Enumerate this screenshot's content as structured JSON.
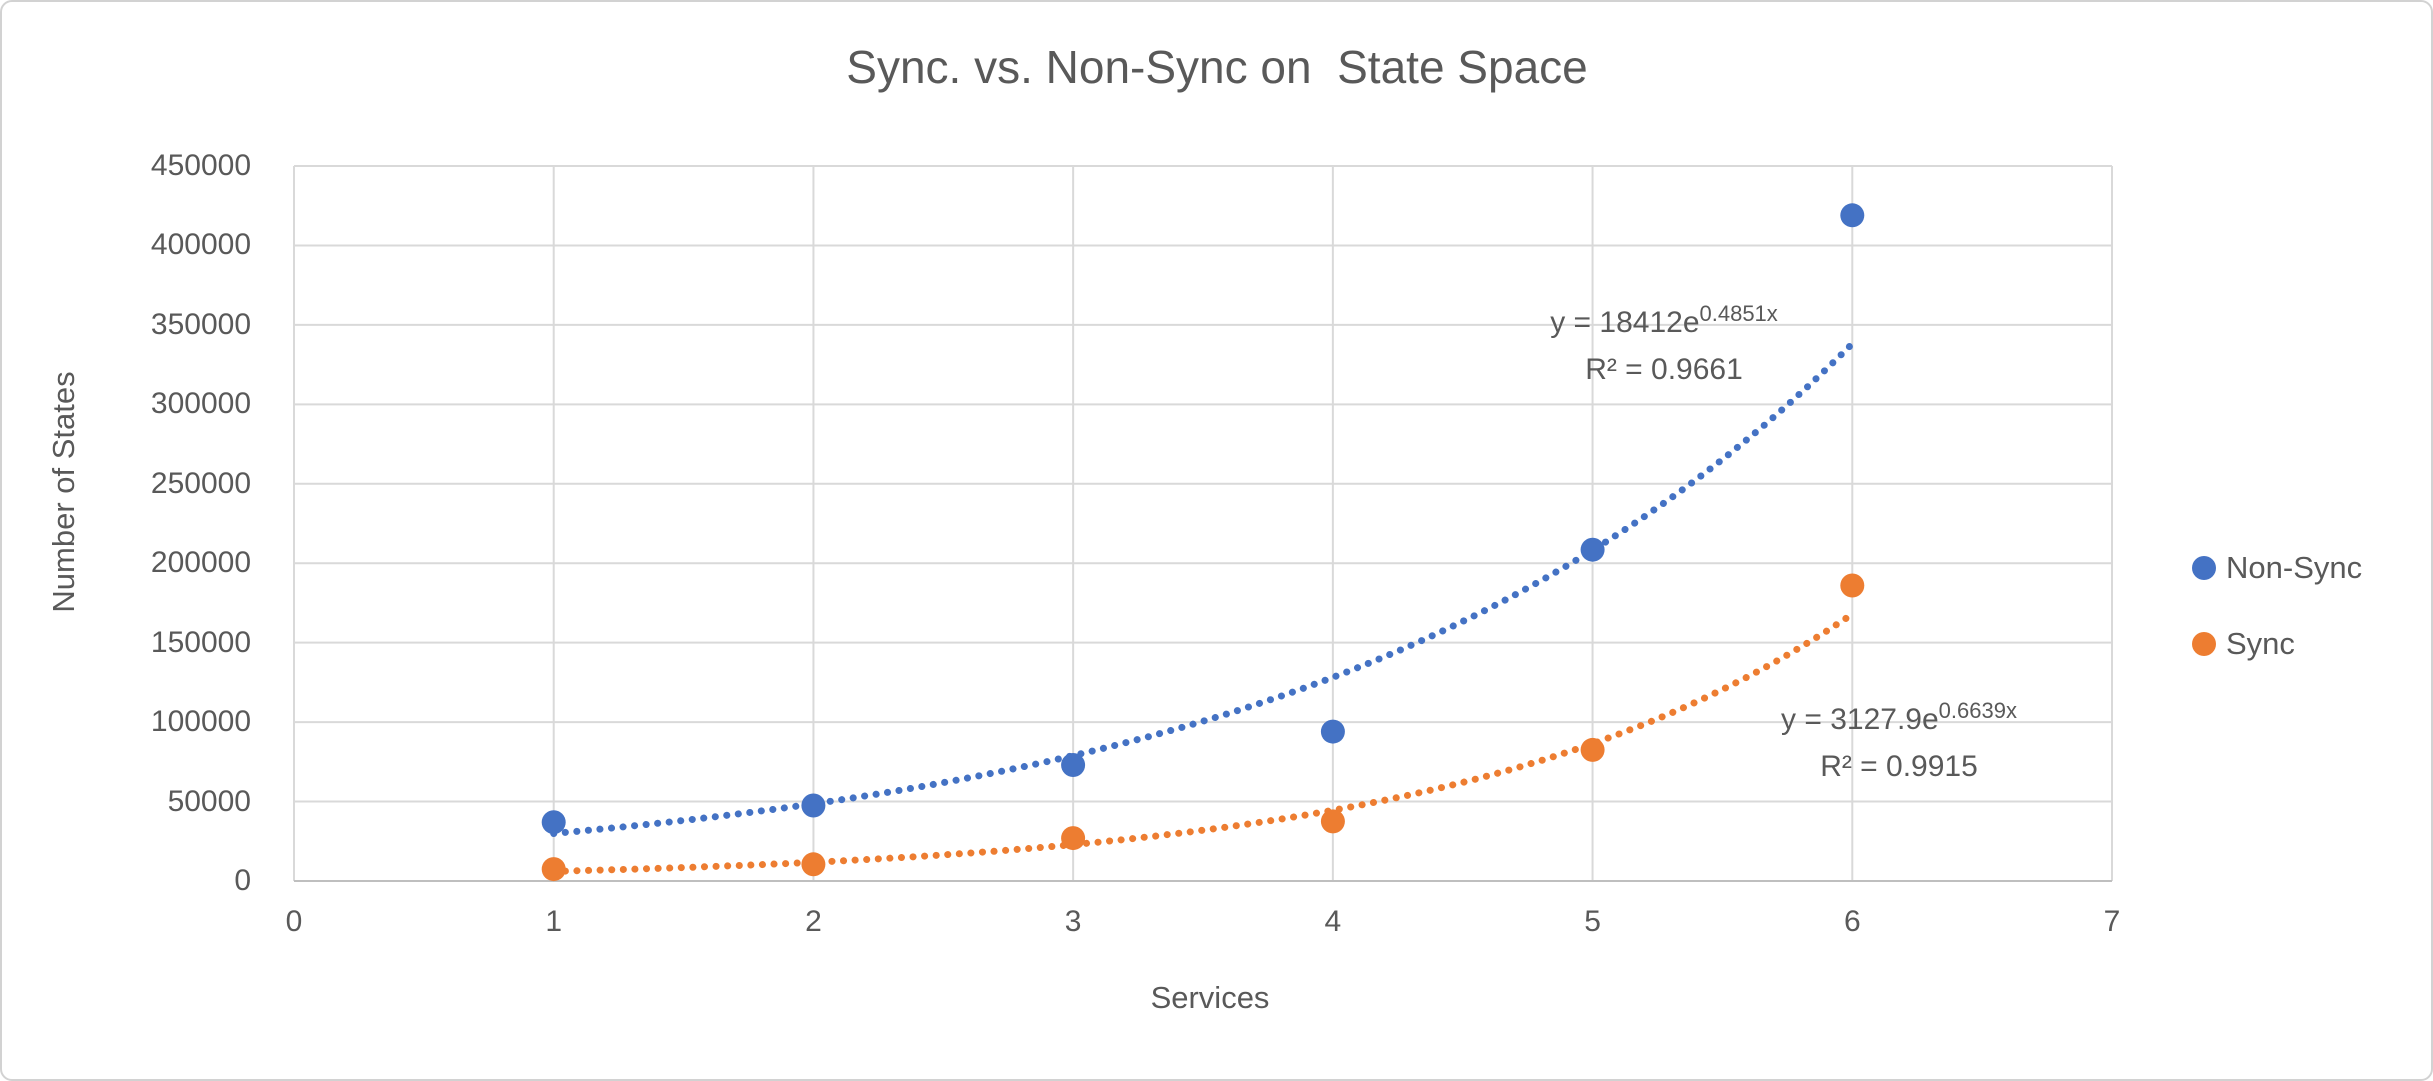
{
  "chart": {
    "title": "Sync. vs. Non-Sync on  State Space",
    "x_axis": {
      "title": "Services",
      "min": 0,
      "max": 7,
      "ticks": [
        0,
        1,
        2,
        3,
        4,
        5,
        6,
        7
      ]
    },
    "y_axis": {
      "title": "Number of States",
      "min": 0,
      "max": 450000,
      "tick_step": 50000,
      "ticks": [
        0,
        50000,
        100000,
        150000,
        200000,
        250000,
        300000,
        350000,
        400000,
        450000
      ]
    }
  },
  "chart_data": {
    "type": "scatter",
    "title": "Sync. vs. Non-Sync on  State Space",
    "xlabel": "Services",
    "ylabel": "Number of States",
    "xlim": [
      0,
      7
    ],
    "ylim": [
      0,
      450000
    ],
    "grid": true,
    "legend_position": "right",
    "x": [
      1,
      2,
      3,
      4,
      5,
      6
    ],
    "series": [
      {
        "name": "Non-Sync",
        "color": "#4472C4",
        "values": [
          37000,
          47500,
          73000,
          94000,
          208500,
          419000
        ],
        "trendline": {
          "type": "exponential",
          "style": "dotted",
          "a": 18412,
          "b": 0.4851,
          "x_start": 1,
          "x_end": 6,
          "label_base": "y = 18412e",
          "label_exp": "0.4851x",
          "r2_label": "R² = 0.9661"
        }
      },
      {
        "name": "Sync",
        "color": "#ED7D31",
        "values": [
          7500,
          10500,
          27000,
          37500,
          82500,
          186000
        ],
        "trendline": {
          "type": "exponential",
          "style": "dotted",
          "a": 3127.9,
          "b": 0.6639,
          "x_start": 1,
          "x_end": 6,
          "label_base": "y = 3127.9e",
          "label_exp": "0.6639x",
          "r2_label": "R² = 0.9915"
        }
      }
    ]
  },
  "colors": {
    "gridline": "#D9D9D9",
    "axis_line": "#BFBFBF",
    "text": "#595959",
    "background": "#FFFFFF",
    "non_sync": "#4472C4",
    "sync": "#ED7D31"
  }
}
